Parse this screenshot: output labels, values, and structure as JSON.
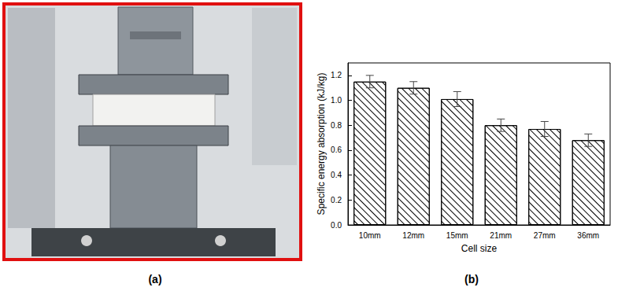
{
  "panel_labels": [
    "(a)",
    "(b)"
  ],
  "chart_data": {
    "type": "bar",
    "x_label": "Cell size",
    "y_label": "Specific energy absorption (kJ/kg)",
    "categories": [
      "10mm",
      "12mm",
      "15mm",
      "21mm",
      "27mm",
      "36mm"
    ],
    "values": [
      1.15,
      1.1,
      1.01,
      0.8,
      0.77,
      0.68
    ],
    "errors": [
      0.05,
      0.05,
      0.06,
      0.05,
      0.06,
      0.05
    ],
    "color": "#ffffff",
    "ylim": [
      0,
      1.3
    ],
    "yticks": [
      {
        "value": 0,
        "label": "0.0"
      },
      {
        "value": 0.2,
        "label": "0.2"
      },
      {
        "value": 0.4,
        "label": "0.4"
      },
      {
        "value": 0.6,
        "label": "0.6"
      },
      {
        "value": 0.8,
        "label": "0.8"
      },
      {
        "value": 1.0,
        "label": "1.0"
      },
      {
        "value": 1.2,
        "label": "1.2"
      }
    ],
    "grid": false
  }
}
